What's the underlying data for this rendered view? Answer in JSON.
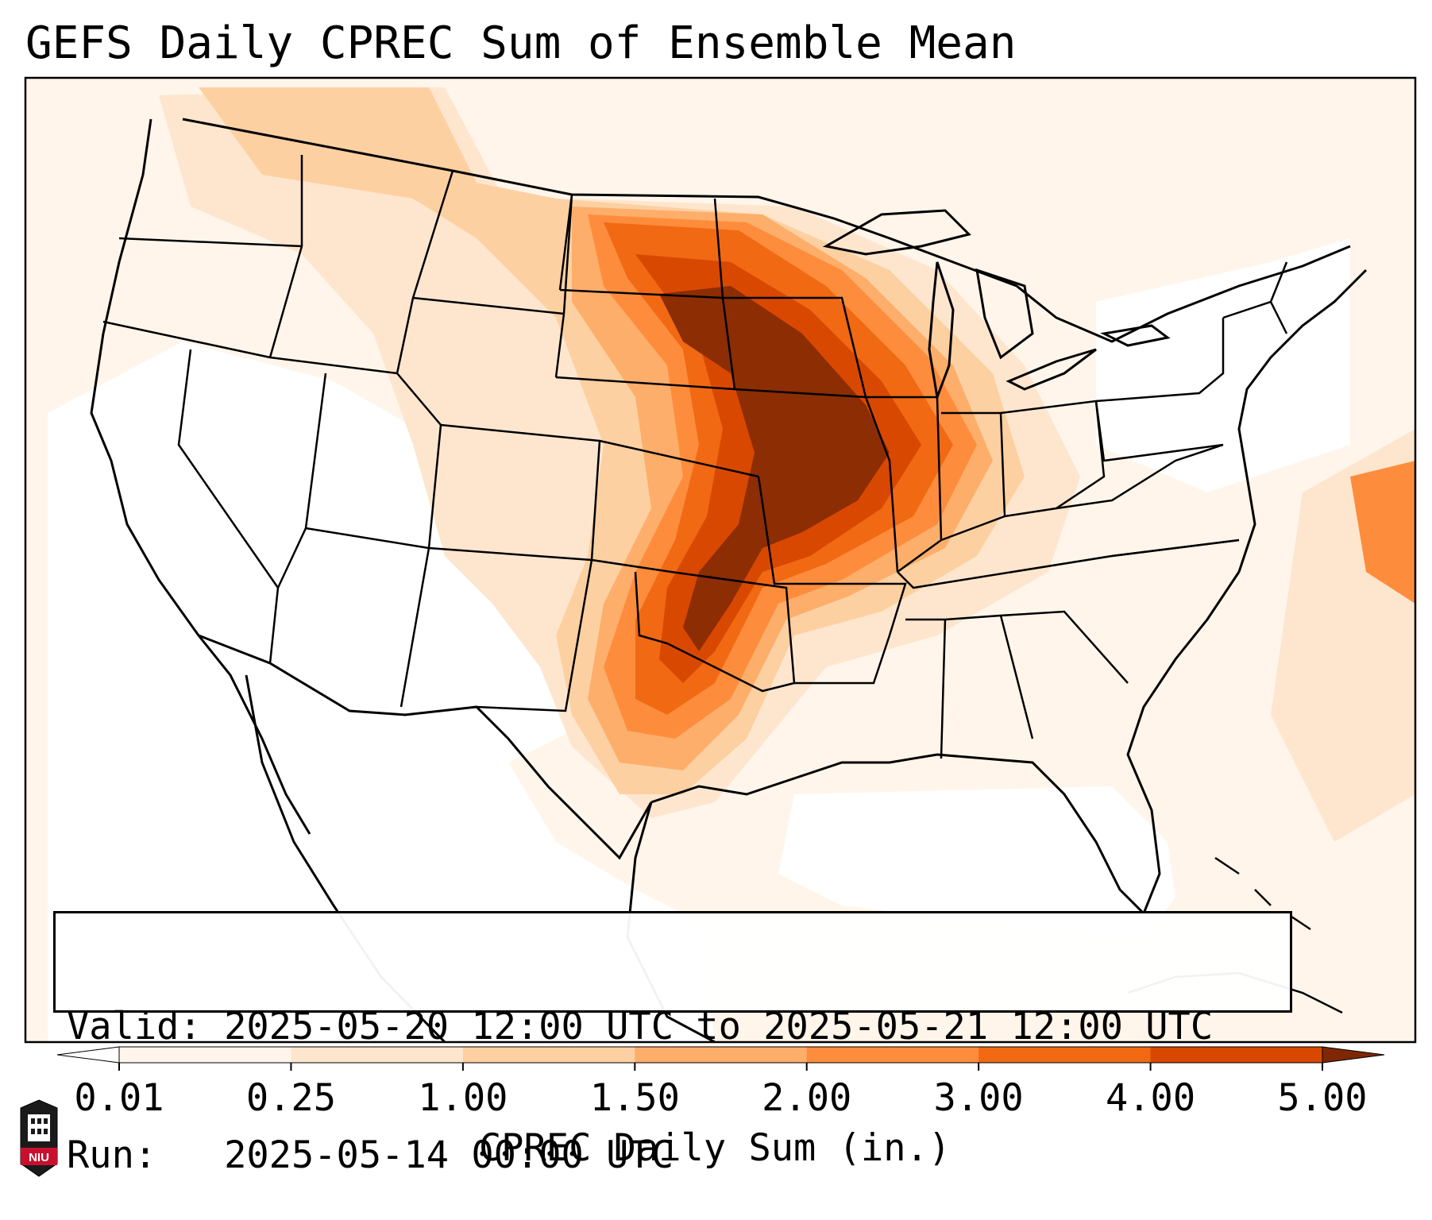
{
  "title": "GEFS Daily CPREC Sum of Ensemble Mean",
  "info": {
    "valid_line": "Valid: 2025-05-20 12:00 UTC to 2025-05-21 12:00 UTC",
    "run_line": "Run:   2025-05-14 00:00 UTC"
  },
  "colorbar": {
    "label": "CPREC Daily Sum (in.)",
    "ticks": [
      "0.01",
      "0.25",
      "1.00",
      "1.50",
      "2.00",
      "3.00",
      "4.00",
      "5.00"
    ],
    "colors": [
      "#fff5eb",
      "#fee6ce",
      "#fdd0a2",
      "#fdae6b",
      "#fd8d3c",
      "#f16913",
      "#d94801",
      "#8c2d04"
    ],
    "under_color": "#ffffff",
    "over_color": "#7f2704"
  },
  "logo": {
    "text": "NIU",
    "color": "#c8102e"
  }
}
